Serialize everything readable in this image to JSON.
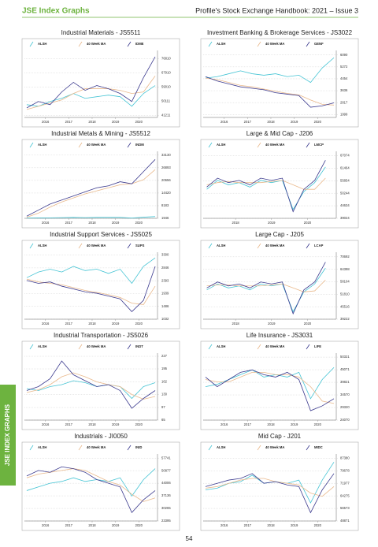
{
  "header": {
    "title": "JSE Index Graphs",
    "subtitle": "Profile's Stock Exchange Handbook: 2021 – Issue 3"
  },
  "side_tab": "JSE INDEX GRAPHS",
  "page_number": "54",
  "chart_data": [
    {
      "type": "line",
      "title": "Industrial Materials - JS5511",
      "x": [
        2015.7,
        2016.2,
        2016.7,
        2017.2,
        2017.7,
        2018.2,
        2018.7,
        2019.2,
        2019.7,
        2020.2,
        2020.7,
        2021.2
      ],
      "xlim": [
        2015.6,
        2021.3
      ],
      "xticks": [
        {
          "value": 2016.5,
          "label": "2016"
        },
        {
          "value": 2017.5,
          "label": "2017"
        },
        {
          "value": 2018.5,
          "label": "2018"
        },
        {
          "value": 2019.5,
          "label": "2019"
        },
        {
          "value": 2020.5,
          "label": "2020"
        }
      ],
      "ylim": [
        40000,
        82000
      ],
      "yticks": [
        41211,
        50111,
        59010,
        67910,
        76810
      ],
      "series": [
        {
          "name": "ALSH",
          "color": "#45c4d4",
          "values": [
            48000,
            47000,
            50000,
            52000,
            55000,
            52000,
            53000,
            54000,
            53000,
            47000,
            55000,
            60000
          ]
        },
        {
          "name": "40 Week MA",
          "color": "#e9b98c",
          "values": [
            45000,
            47000,
            49000,
            51000,
            55000,
            58000,
            58000,
            58000,
            57000,
            55000,
            56000,
            66000
          ]
        },
        {
          "name": "IDME",
          "color": "#3b3a8e",
          "values": [
            46000,
            50000,
            48000,
            56000,
            62000,
            57000,
            60000,
            58000,
            55000,
            50000,
            65000,
            78000
          ]
        }
      ]
    },
    {
      "type": "line",
      "title": "Investment Banking & Brokerage Services - JS3022",
      "x": [
        2015.7,
        2016.2,
        2016.7,
        2017.2,
        2017.7,
        2018.2,
        2018.7,
        2019.2,
        2019.7,
        2020.2,
        2020.7,
        2021.2
      ],
      "xlim": [
        2015.6,
        2021.3
      ],
      "xticks": [
        {
          "value": 2016.5,
          "label": "2016"
        },
        {
          "value": 2017.5,
          "label": "2017"
        },
        {
          "value": 2018.5,
          "label": "2018"
        },
        {
          "value": 2019.5,
          "label": "2019"
        },
        {
          "value": 2020.5,
          "label": "2020"
        }
      ],
      "ylim": [
        1800,
        6400
      ],
      "yticks": [
        1999,
        2817,
        3636,
        4454,
        5272,
        6090
      ],
      "series": [
        {
          "name": "ALSH",
          "color": "#45c4d4",
          "values": [
            4500,
            4600,
            4800,
            5000,
            4800,
            4700,
            4800,
            4600,
            4700,
            4200,
            5200,
            5900
          ]
        },
        {
          "name": "40 Week MA",
          "color": "#e9b98c",
          "values": [
            4500,
            4400,
            4200,
            4000,
            3900,
            3750,
            3600,
            3450,
            3350,
            3000,
            2700,
            2650
          ]
        },
        {
          "name": "GENF",
          "color": "#3b3a8e",
          "values": [
            4600,
            4300,
            4100,
            3900,
            3800,
            3700,
            3500,
            3400,
            3300,
            2500,
            2600,
            2800
          ]
        }
      ]
    },
    {
      "type": "line",
      "title": "Industrial Metals & Mining - JS5512",
      "x": [
        2015.7,
        2016.2,
        2016.7,
        2017.2,
        2017.7,
        2018.2,
        2018.7,
        2019.2,
        2019.7,
        2020.2,
        2020.7,
        2021.2
      ],
      "xlim": [
        2015.6,
        2021.3
      ],
      "xticks": [
        {
          "value": 2016.5,
          "label": "2016"
        },
        {
          "value": 2017.5,
          "label": "2017"
        },
        {
          "value": 2018.5,
          "label": "2018"
        },
        {
          "value": 2019.5,
          "label": "2019"
        },
        {
          "value": 2020.5,
          "label": "2020"
        }
      ],
      "ylim": [
        1946,
        35000
      ],
      "yticks": [
        1946,
        8183,
        14420,
        20656,
        26893,
        33130
      ],
      "series": [
        {
          "name": "ALSH",
          "color": "#45c4d4",
          "values": [
            2100,
            2200,
            2200,
            2300,
            2400,
            2300,
            2400,
            2400,
            2400,
            2100,
            2500,
            2800
          ]
        },
        {
          "name": "40 Week MA",
          "color": "#e9b98c",
          "values": [
            2500,
            4500,
            7500,
            10000,
            12000,
            14000,
            15500,
            17000,
            18500,
            19000,
            21000,
            26000
          ]
        },
        {
          "name": "INDM",
          "color": "#3b3a8e",
          "values": [
            3000,
            6000,
            9000,
            11000,
            13000,
            15000,
            17000,
            18000,
            20000,
            19000,
            25000,
            31000
          ]
        }
      ]
    },
    {
      "type": "line",
      "title": "Large & Mid Cap - J206",
      "x": [
        2017.7,
        2018.0,
        2018.3,
        2018.6,
        2018.9,
        2019.2,
        2019.5,
        2019.8,
        2020.1,
        2020.4,
        2020.7,
        2021.0
      ],
      "xlim": [
        2017.6,
        2021.3
      ],
      "xticks": [
        {
          "value": 2018.5,
          "label": "2018"
        },
        {
          "value": 2019.5,
          "label": "2019"
        },
        {
          "value": 2020.5,
          "label": "2020"
        }
      ],
      "ylim": [
        39024,
        69000
      ],
      "yticks": [
        39024,
        44634,
        50244,
        55854,
        61464,
        67074
      ],
      "series": [
        {
          "name": "ALSH",
          "color": "#45c4d4",
          "values": [
            52000,
            56000,
            54000,
            55000,
            53000,
            56000,
            55000,
            56000,
            43000,
            51000,
            55000,
            62000
          ]
        },
        {
          "name": "40 Week MA",
          "color": "#e9b98c",
          "values": [
            54000,
            55000,
            55500,
            55000,
            55000,
            55000,
            55500,
            56000,
            54000,
            52000,
            52000,
            57000
          ]
        },
        {
          "name": "LMCP",
          "color": "#3b3a8e",
          "values": [
            53000,
            57000,
            55000,
            56000,
            54000,
            57000,
            56000,
            57000,
            42000,
            52000,
            56000,
            65000
          ]
        }
      ]
    },
    {
      "type": "line",
      "title": "Industrial Support Services - JS5025",
      "x": [
        2015.7,
        2016.2,
        2016.7,
        2017.2,
        2017.7,
        2018.2,
        2018.7,
        2019.2,
        2019.7,
        2020.2,
        2020.7,
        2021.2
      ],
      "xlim": [
        2015.6,
        2021.3
      ],
      "xticks": [
        {
          "value": 2016.5,
          "label": "2016"
        },
        {
          "value": 2017.5,
          "label": "2017"
        },
        {
          "value": 2018.5,
          "label": "2018"
        },
        {
          "value": 2019.5,
          "label": "2019"
        },
        {
          "value": 2020.5,
          "label": "2020"
        }
      ],
      "ylim": [
        1032,
        3400
      ],
      "yticks": [
        1032,
        1486,
        1939,
        2393,
        2846,
        3300
      ],
      "series": [
        {
          "name": "ALSH",
          "color": "#45c4d4",
          "values": [
            2500,
            2700,
            2800,
            2700,
            2900,
            2750,
            2800,
            2650,
            2800,
            2300,
            2900,
            3200
          ]
        },
        {
          "name": "40 Week MA",
          "color": "#e9b98c",
          "values": [
            2450,
            2350,
            2300,
            2250,
            2150,
            2050,
            1980,
            1900,
            1800,
            1600,
            1550,
            2200
          ]
        },
        {
          "name": "SUPS",
          "color": "#3b3a8e",
          "values": [
            2400,
            2300,
            2350,
            2200,
            2100,
            2000,
            1950,
            1850,
            1750,
            1300,
            1700,
            2900
          ]
        }
      ]
    },
    {
      "type": "line",
      "title": "Large Cap - J205",
      "x": [
        2017.7,
        2018.0,
        2018.3,
        2018.6,
        2018.9,
        2019.2,
        2019.5,
        2019.8,
        2020.1,
        2020.4,
        2020.7,
        2021.0
      ],
      "xlim": [
        2017.6,
        2021.3
      ],
      "xticks": [
        {
          "value": 2018.5,
          "label": "2018"
        },
        {
          "value": 2019.5,
          "label": "2019"
        },
        {
          "value": 2020.5,
          "label": "2020"
        }
      ],
      "ylim": [
        39222,
        73000
      ],
      "yticks": [
        39222,
        45516,
        51810,
        58104,
        64398,
        70692
      ],
      "series": [
        {
          "name": "ALSH",
          "color": "#45c4d4",
          "values": [
            54000,
            57000,
            55000,
            56000,
            54000,
            57000,
            56000,
            57000,
            43000,
            53000,
            57000,
            65000
          ]
        },
        {
          "name": "40 Week MA",
          "color": "#e9b98c",
          "values": [
            56000,
            56500,
            56500,
            56000,
            56000,
            56000,
            56500,
            57000,
            55000,
            53000,
            53500,
            59000
          ]
        },
        {
          "name": "LCAP",
          "color": "#3b3a8e",
          "values": [
            55000,
            58000,
            56000,
            57000,
            55000,
            58000,
            57000,
            58000,
            42000,
            54000,
            58000,
            68000
          ]
        }
      ]
    },
    {
      "type": "line",
      "title": "Industrial Transportation - JS5026",
      "x": [
        2015.7,
        2016.2,
        2016.7,
        2017.2,
        2017.7,
        2018.2,
        2018.7,
        2019.2,
        2019.7,
        2020.2,
        2020.7,
        2021.2
      ],
      "xlim": [
        2015.6,
        2021.3
      ],
      "xticks": [
        {
          "value": 2016.5,
          "label": "2016"
        },
        {
          "value": 2017.5,
          "label": "2017"
        },
        {
          "value": 2018.5,
          "label": "2018"
        },
        {
          "value": 2019.5,
          "label": "2019"
        },
        {
          "value": 2020.5,
          "label": "2020"
        }
      ],
      "ylim": [
        65,
        235
      ],
      "yticks": [
        65,
        97,
        130,
        162,
        195,
        227
      ],
      "series": [
        {
          "name": "ALSH",
          "color": "#45c4d4",
          "values": [
            145,
            140,
            150,
            155,
            165,
            160,
            150,
            155,
            150,
            120,
            150,
            160
          ]
        },
        {
          "name": "40 Week MA",
          "color": "#e9b98c",
          "values": [
            135,
            142,
            155,
            175,
            185,
            175,
            162,
            155,
            150,
            130,
            118,
            125
          ]
        },
        {
          "name": "INDT",
          "color": "#3b3a8e",
          "values": [
            140,
            150,
            170,
            215,
            180,
            165,
            150,
            155,
            140,
            95,
            120,
            140
          ]
        }
      ]
    },
    {
      "type": "line",
      "title": "Life Insurance - JS3031",
      "x": [
        2015.7,
        2016.2,
        2016.7,
        2017.2,
        2017.7,
        2018.2,
        2018.7,
        2019.2,
        2019.7,
        2020.2,
        2020.7,
        2021.2
      ],
      "xlim": [
        2015.6,
        2021.3
      ],
      "xticks": [
        {
          "value": 2016.5,
          "label": "2016"
        },
        {
          "value": 2017.5,
          "label": "2017"
        },
        {
          "value": 2018.5,
          "label": "2018"
        },
        {
          "value": 2019.5,
          "label": "2019"
        },
        {
          "value": 2020.5,
          "label": "2020"
        }
      ],
      "ylim": [
        24070,
        52000
      ],
      "yticks": [
        24070,
        29320,
        34570,
        39821,
        45071,
        50321
      ],
      "series": [
        {
          "name": "ALSH",
          "color": "#45c4d4",
          "values": [
            38000,
            39000,
            41000,
            43000,
            45000,
            42000,
            43000,
            42000,
            44000,
            33000,
            41000,
            46000
          ]
        },
        {
          "name": "40 Week MA",
          "color": "#e9b98c",
          "values": [
            41000,
            40000,
            40000,
            42000,
            44000,
            44000,
            43000,
            43000,
            42000,
            38000,
            32000,
            31000
          ]
        },
        {
          "name": "LIFE",
          "color": "#3b3a8e",
          "values": [
            42000,
            38000,
            41000,
            44000,
            45000,
            43000,
            42000,
            44000,
            41000,
            28000,
            30000,
            33000
          ]
        }
      ]
    },
    {
      "type": "line",
      "title": "Industrials - JI0050",
      "x": [
        2015.7,
        2016.2,
        2016.7,
        2017.2,
        2017.7,
        2018.2,
        2018.7,
        2019.2,
        2019.7,
        2020.2,
        2020.7,
        2021.2
      ],
      "xlim": [
        2015.6,
        2021.3
      ],
      "xticks": [
        {
          "value": 2016.5,
          "label": "2016"
        },
        {
          "value": 2017.5,
          "label": "2017"
        },
        {
          "value": 2018.5,
          "label": "2018"
        },
        {
          "value": 2019.5,
          "label": "2019"
        },
        {
          "value": 2020.5,
          "label": "2020"
        }
      ],
      "ylim": [
        23395,
        60000
      ],
      "yticks": [
        23395,
        30265,
        37136,
        44006,
        50877,
        57741
      ],
      "series": [
        {
          "name": "ALSH",
          "color": "#45c4d4",
          "values": [
            40000,
            42000,
            44000,
            45000,
            47000,
            45000,
            46000,
            45000,
            47000,
            37000,
            46000,
            52000
          ]
        },
        {
          "name": "40 Week MA",
          "color": "#e9b98c",
          "values": [
            47000,
            49000,
            50000,
            51000,
            52000,
            51000,
            48000,
            45000,
            43000,
            38000,
            34000,
            36000
          ]
        },
        {
          "name": "INID",
          "color": "#3b3a8e",
          "values": [
            48000,
            51000,
            50000,
            53000,
            52000,
            50000,
            46000,
            44000,
            42000,
            28000,
            35000,
            40000
          ]
        }
      ]
    },
    {
      "type": "line",
      "title": "Mid Cap - J201",
      "x": [
        2015.7,
        2016.2,
        2016.7,
        2017.2,
        2017.7,
        2018.2,
        2018.7,
        2019.2,
        2019.7,
        2020.2,
        2020.7,
        2021.2
      ],
      "xlim": [
        2015.6,
        2021.3
      ],
      "xticks": [
        {
          "value": 2016.5,
          "label": "2016"
        },
        {
          "value": 2017.5,
          "label": "2017"
        },
        {
          "value": 2018.5,
          "label": "2018"
        },
        {
          "value": 2019.5,
          "label": "2019"
        },
        {
          "value": 2020.5,
          "label": "2020"
        }
      ],
      "ylim": [
        48871,
        90000
      ],
      "yticks": [
        48871,
        56573,
        64275,
        71977,
        79678,
        87380
      ],
      "series": [
        {
          "name": "ALSH",
          "color": "#45c4d4",
          "values": [
            68000,
            69000,
            72000,
            73000,
            77000,
            72000,
            73000,
            72000,
            74000,
            60000,
            74000,
            85000
          ]
        },
        {
          "name": "40 Week MA",
          "color": "#e9b98c",
          "values": [
            69000,
            70000,
            72000,
            74000,
            75000,
            75000,
            73000,
            72000,
            71000,
            66000,
            64000,
            70000
          ]
        },
        {
          "name": "MIDC",
          "color": "#3b3a8e",
          "values": [
            70000,
            72000,
            74000,
            75000,
            78000,
            72000,
            73000,
            71000,
            70000,
            54000,
            68000,
            78000
          ]
        }
      ]
    }
  ]
}
